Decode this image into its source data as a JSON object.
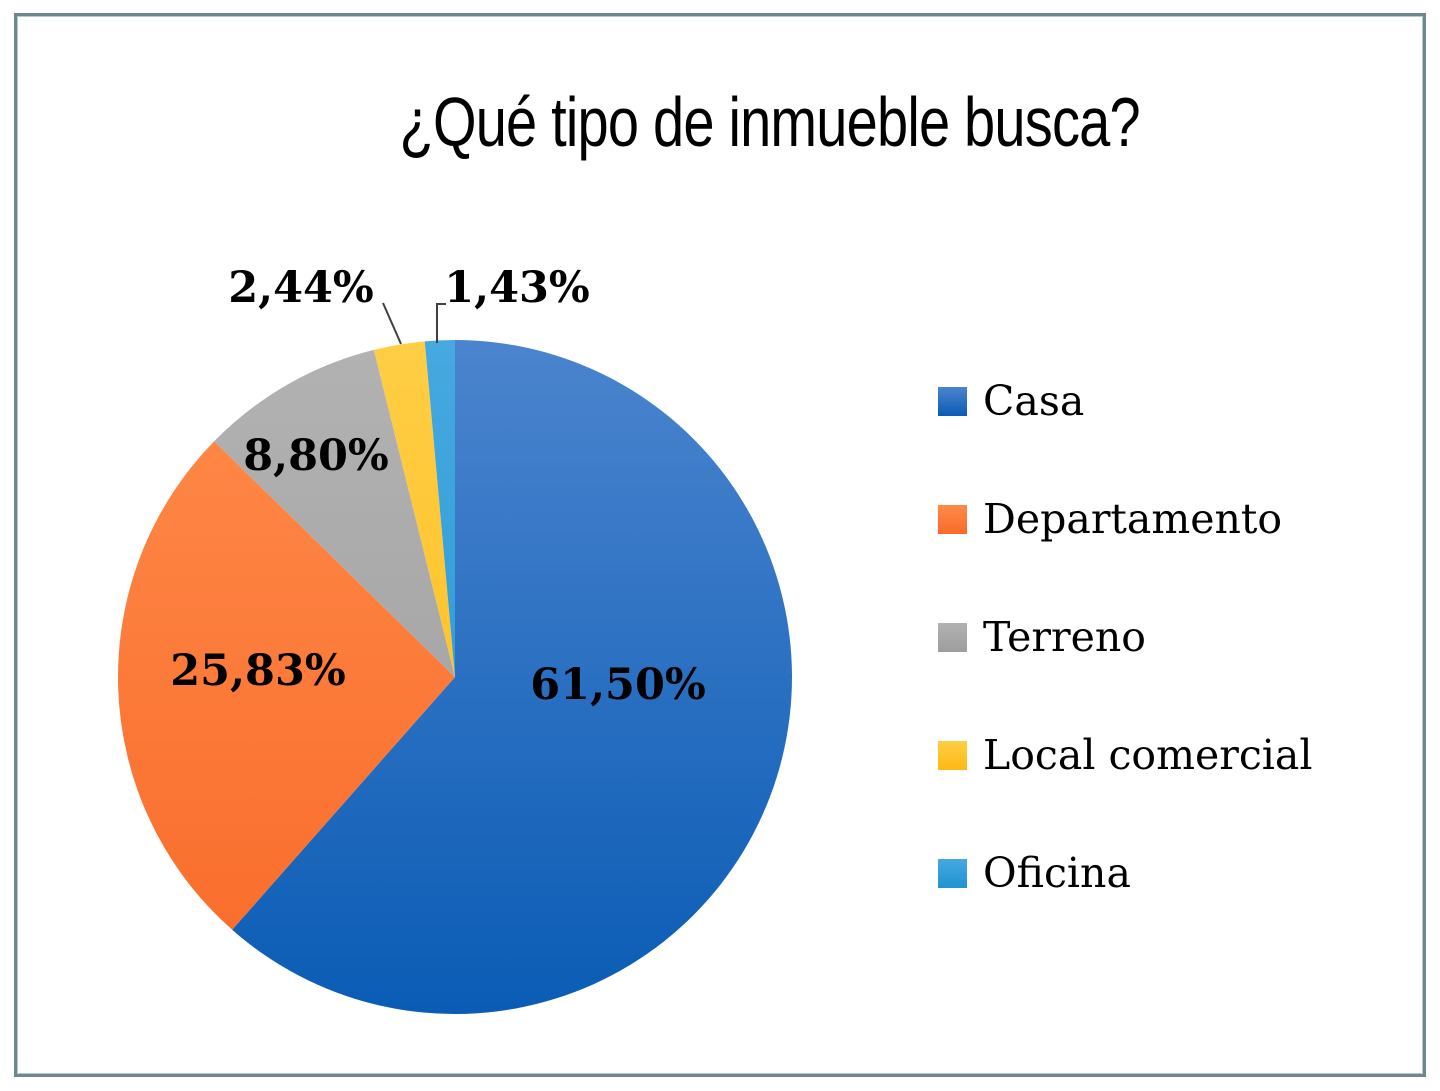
{
  "frame": {
    "border_color": "#6d8791"
  },
  "title": {
    "text": "¿Qué tipo de inmueble busca?"
  },
  "legend": {
    "position": "right",
    "items": [
      {
        "label": "Casa"
      },
      {
        "label": "Departamento"
      },
      {
        "label": "Terreno"
      },
      {
        "label": "Local comercial"
      },
      {
        "label": "Oficina"
      }
    ]
  },
  "chart_data": {
    "type": "pie",
    "title": "¿Qué tipo de inmueble busca?",
    "start_angle_deg": 0,
    "direction": "clockwise",
    "legend_position": "right",
    "labels_format": "percent-comma-decimal",
    "slices": [
      {
        "id": "casa",
        "label": "Casa",
        "value": 61.5,
        "display": "61,50%",
        "color_top": "#4b84ce",
        "color_bottom": "#0a5cb5"
      },
      {
        "id": "departamento",
        "label": "Departamento",
        "value": 25.83,
        "display": "25,83%",
        "color_top": "#ff8b4b",
        "color_bottom": "#f96a28"
      },
      {
        "id": "terreno",
        "label": "Terreno",
        "value": 8.8,
        "display": "8,80%",
        "color_top": "#b2b2b2",
        "color_bottom": "#9d9d9d"
      },
      {
        "id": "local-comercial",
        "label": "Local comercial",
        "value": 2.44,
        "display": "2,44%",
        "color_top": "#ffce45",
        "color_bottom": "#fdb913"
      },
      {
        "id": "oficina",
        "label": "Oficina",
        "value": 1.43,
        "display": "1,43%",
        "color_top": "#46a9e0",
        "color_bottom": "#1f93d1"
      }
    ]
  }
}
